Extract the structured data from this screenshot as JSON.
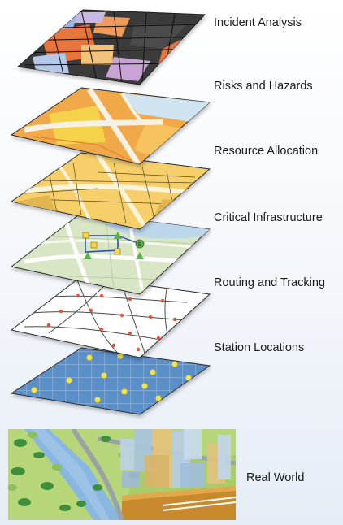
{
  "layers": [
    {
      "label": "Incident Analysis"
    },
    {
      "label": "Risks and Hazards"
    },
    {
      "label": "Resource Allocation"
    },
    {
      "label": "Critical Infrastructure"
    },
    {
      "label": "Routing and Tracking"
    },
    {
      "label": "Station Locations"
    }
  ],
  "base": {
    "label": "Real World"
  },
  "colors": {
    "incident_fill": "#3a3a3a",
    "incident_accent": "#e8743b",
    "hazard_fill": "#f0a84a",
    "hazard_road": "#f5f1e4",
    "hazard_water": "#cfe3f0",
    "resource_fill": "#f6cf6a",
    "resource_road": "#fbf4d8",
    "infra_fill": "#d9e6c6",
    "infra_water": "#bcd6ea",
    "routing_fill": "#ffffff",
    "routing_point": "#e8502c",
    "station_fill": "#5b8fc8",
    "station_point": "#f1e547",
    "ground_green": "#a9cc6b",
    "river_blue": "#89b7df",
    "soil_orange": "#c98a2e"
  }
}
